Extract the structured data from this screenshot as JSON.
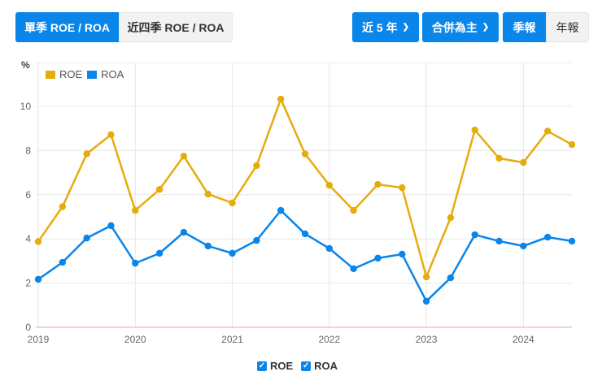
{
  "toolbar": {
    "tab_single": "單季 ROE / ROA",
    "tab_rolling": "近四季 ROE / ROA",
    "range": "近 5 年",
    "basis": "合併為主",
    "quarterly": "季報",
    "annual": "年報"
  },
  "legend": {
    "unit": "%",
    "roe": "ROE",
    "roa": "ROA"
  },
  "bottom_legend": {
    "roe": "ROE",
    "roa": "ROA"
  },
  "colors": {
    "roe": "#e6ac0c",
    "roa": "#0a85ea",
    "active": "#0a85ea"
  },
  "chart_data": {
    "type": "line",
    "title": "",
    "ylabel": "%",
    "ylim": [
      0,
      10.5
    ],
    "yticks": [
      0,
      2,
      4,
      6,
      8,
      10
    ],
    "xticks": [
      "2019",
      "2020",
      "2021",
      "2022",
      "2023",
      "2024"
    ],
    "x": [
      "2019Q1",
      "2019Q2",
      "2019Q3",
      "2019Q4",
      "2020Q1",
      "2020Q2",
      "2020Q3",
      "2020Q4",
      "2021Q1",
      "2021Q2",
      "2021Q3",
      "2021Q4",
      "2022Q1",
      "2022Q2",
      "2022Q3",
      "2022Q4",
      "2023Q1",
      "2023Q2",
      "2023Q3",
      "2023Q4",
      "2024Q1",
      "2024Q2",
      "2024Q3"
    ],
    "series": [
      {
        "name": "ROE",
        "values": [
          3.88,
          5.46,
          7.85,
          8.72,
          5.29,
          6.24,
          7.75,
          6.03,
          5.63,
          7.32,
          10.33,
          7.85,
          6.43,
          5.29,
          6.47,
          6.32,
          2.28,
          4.96,
          8.93,
          7.65,
          7.46,
          8.88,
          8.27
        ]
      },
      {
        "name": "ROA",
        "values": [
          2.17,
          2.94,
          4.04,
          4.6,
          2.9,
          3.35,
          4.3,
          3.68,
          3.35,
          3.93,
          5.29,
          4.23,
          3.57,
          2.65,
          3.13,
          3.31,
          1.18,
          2.24,
          4.19,
          3.9,
          3.68,
          4.08,
          3.9
        ]
      }
    ]
  }
}
